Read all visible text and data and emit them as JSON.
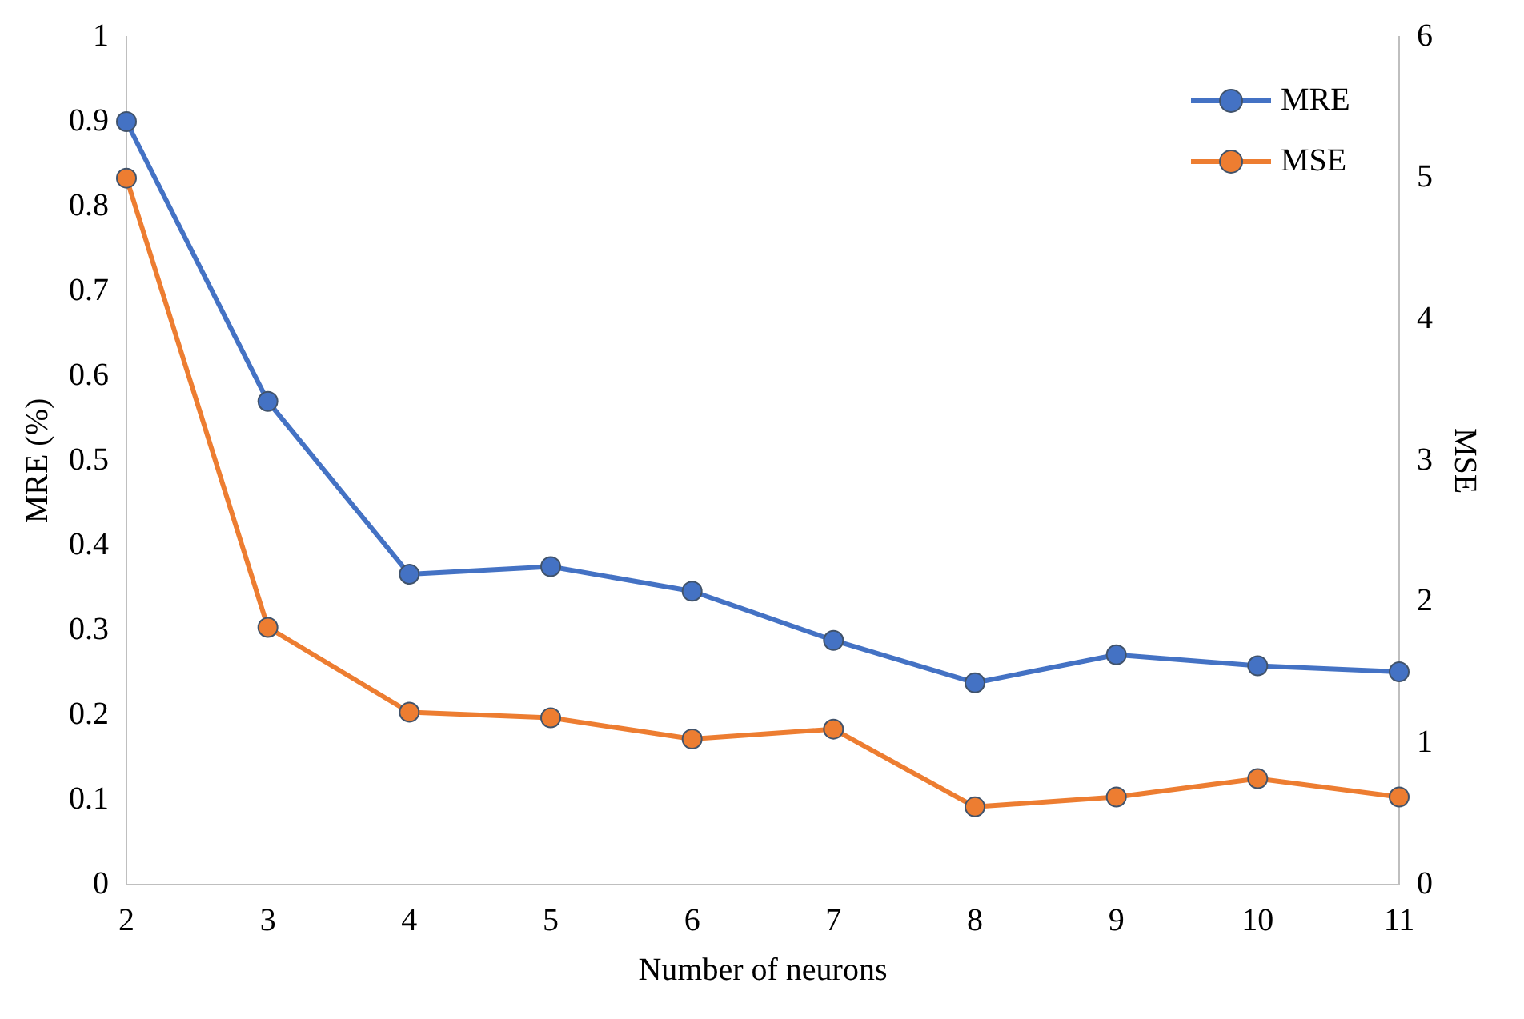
{
  "chart_data": {
    "type": "line",
    "xlabel": "Number of neurons",
    "ylabel": "MRE (%)",
    "y2label": "MSE",
    "categories": [
      "2",
      "3",
      "4",
      "5",
      "6",
      "7",
      "8",
      "9",
      "10",
      "11"
    ],
    "series": [
      {
        "name": "MRE",
        "color": "#4472c4",
        "values": [
          0.9,
          0.57,
          0.366,
          0.375,
          0.346,
          0.288,
          0.238,
          0.271,
          0.258,
          0.251
        ]
      },
      {
        "name": "MSE",
        "color": "#ed7d31",
        "axis": "y2",
        "values": [
          5.0,
          1.82,
          1.22,
          1.18,
          1.03,
          1.1,
          0.55,
          0.62,
          0.75,
          0.62
        ]
      }
    ],
    "ylim": [
      0,
      1
    ],
    "yticks": [
      0,
      0.1,
      0.2,
      0.3,
      0.4,
      0.5,
      0.6,
      0.7,
      0.8,
      0.9,
      1
    ],
    "y2lim": [
      0,
      6
    ],
    "y2ticks": [
      0,
      1,
      2,
      3,
      4,
      5,
      6
    ],
    "grid": false,
    "legend": "top right",
    "marker": "circle",
    "line_style": "solid"
  }
}
